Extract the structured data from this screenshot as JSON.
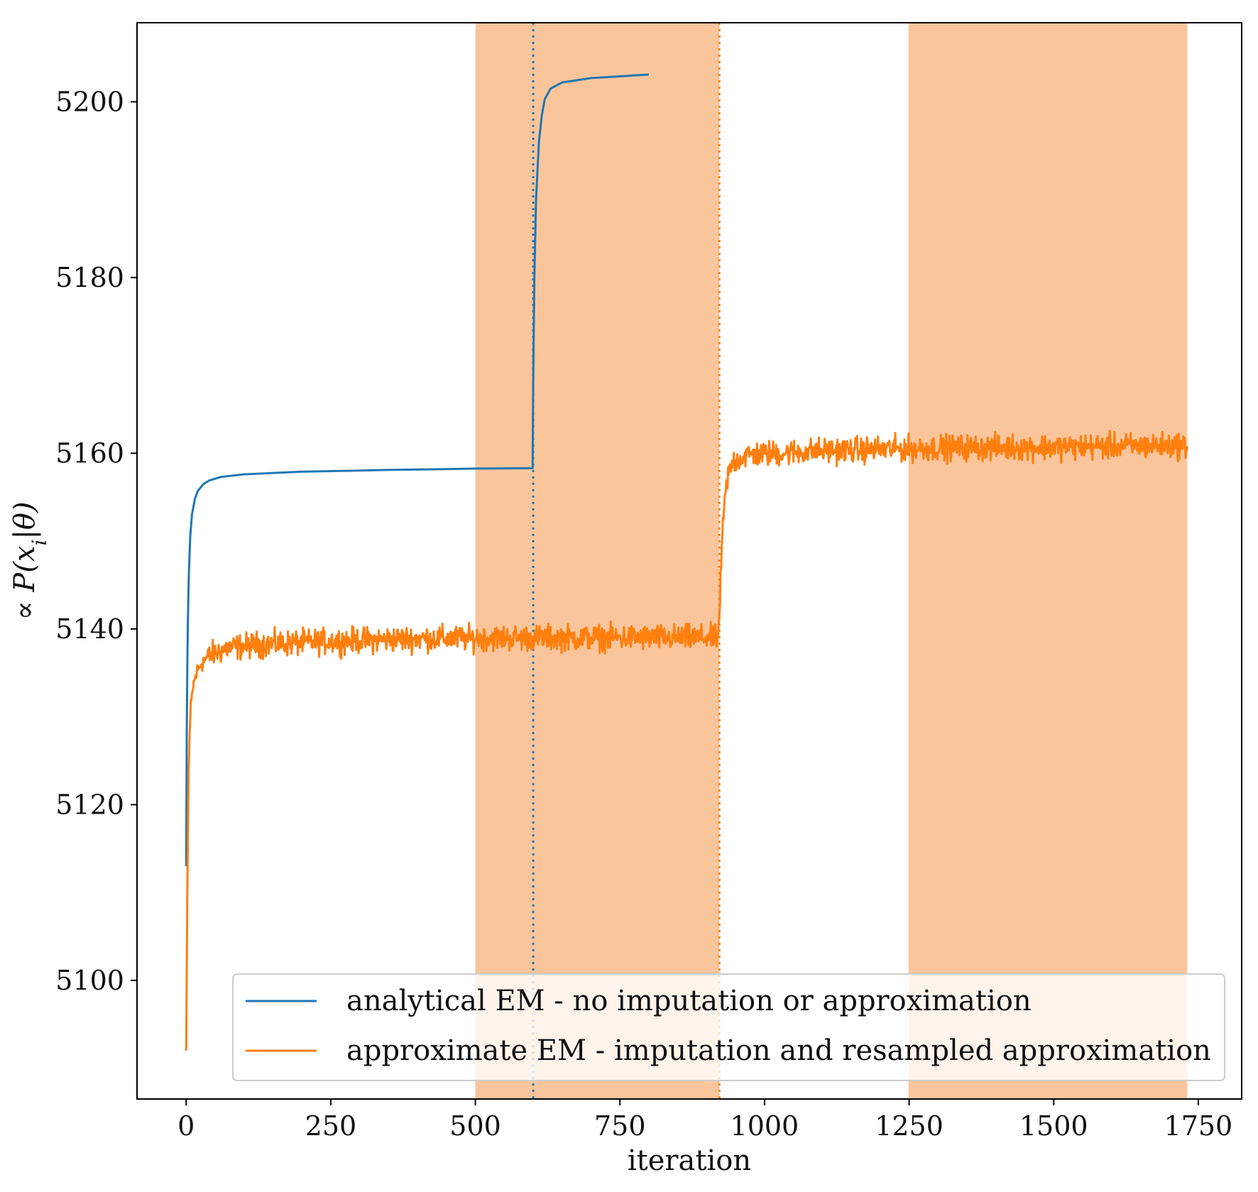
{
  "chart_data": {
    "type": "line",
    "title": "",
    "xlabel": "iteration",
    "ylabel": "∝ P(x_i|θ)",
    "xlim": [
      -85,
      1825
    ],
    "ylim": [
      5086.5,
      5209.0
    ],
    "x_ticks": [
      0,
      250,
      500,
      750,
      1000,
      1250,
      1500,
      1750
    ],
    "y_ticks": [
      5100,
      5120,
      5140,
      5160,
      5180,
      5200
    ],
    "grid": false,
    "legend_position": "lower-right",
    "shaded_regions": [
      {
        "x_start": 500,
        "x_end": 922,
        "color": "#f9b27a"
      },
      {
        "x_start": 1249,
        "x_end": 1731,
        "color": "#f9b27a"
      }
    ],
    "vertical_lines": [
      {
        "x": 600,
        "style": "dotted",
        "color": "#1f77b4"
      },
      {
        "x": 922,
        "style": "dotted",
        "color": "#ff7f0e"
      }
    ],
    "series": [
      {
        "name": "analytical EM - no imputation or approximation",
        "color": "#1f77b4",
        "points": [
          [
            0,
            5113.0
          ],
          [
            1,
            5128.0
          ],
          [
            2,
            5136.0
          ],
          [
            3,
            5141.0
          ],
          [
            4,
            5144.5
          ],
          [
            5,
            5147.0
          ],
          [
            7,
            5150.5
          ],
          [
            10,
            5153.0
          ],
          [
            15,
            5154.8
          ],
          [
            20,
            5155.7
          ],
          [
            30,
            5156.5
          ],
          [
            40,
            5156.9
          ],
          [
            60,
            5157.3
          ],
          [
            100,
            5157.6
          ],
          [
            200,
            5157.9
          ],
          [
            350,
            5158.1
          ],
          [
            500,
            5158.25
          ],
          [
            599,
            5158.3
          ],
          [
            600,
            5168.0
          ],
          [
            602,
            5180.0
          ],
          [
            605,
            5189.0
          ],
          [
            610,
            5195.5
          ],
          [
            615,
            5198.5
          ],
          [
            620,
            5200.3
          ],
          [
            630,
            5201.5
          ],
          [
            650,
            5202.2
          ],
          [
            700,
            5202.7
          ],
          [
            750,
            5202.9
          ],
          [
            800,
            5203.1
          ]
        ]
      },
      {
        "name": "approximate EM - imputation and resampled approximation",
        "color": "#ff7f0e",
        "points": [
          [
            0,
            5092.0
          ],
          [
            2,
            5110.0
          ],
          [
            4,
            5123.0
          ],
          [
            6,
            5128.0
          ],
          [
            8,
            5131.0
          ],
          [
            12,
            5133.5
          ],
          [
            18,
            5135.0
          ],
          [
            25,
            5136.0
          ],
          [
            40,
            5137.0
          ],
          [
            70,
            5137.8
          ],
          [
            120,
            5138.2
          ],
          [
            250,
            5138.6
          ],
          [
            400,
            5138.9
          ],
          [
            600,
            5139.0
          ],
          [
            800,
            5139.0
          ],
          [
            920,
            5139.0
          ],
          [
            924,
            5145.0
          ],
          [
            928,
            5152.0
          ],
          [
            935,
            5157.0
          ],
          [
            945,
            5159.0
          ],
          [
            970,
            5159.8
          ],
          [
            1100,
            5160.3
          ],
          [
            1300,
            5160.6
          ],
          [
            1500,
            5160.7
          ],
          [
            1731,
            5160.9
          ]
        ]
      }
    ]
  }
}
